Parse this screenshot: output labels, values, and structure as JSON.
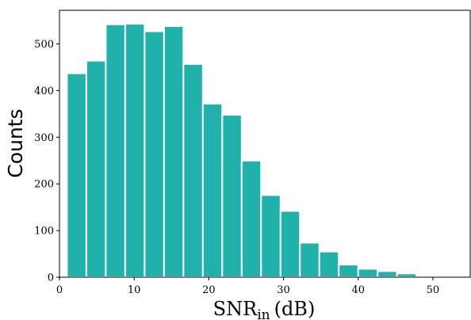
{
  "chart_data": {
    "type": "bar",
    "title": "",
    "xlabel": "SNR",
    "xlabel_subscript": "in",
    "xlabel_unit": "(dB)",
    "ylabel": "Counts",
    "xlim": [
      0,
      55
    ],
    "ylim": [
      0,
      572
    ],
    "x_ticks": [
      0,
      10,
      20,
      30,
      40,
      50
    ],
    "y_ticks": [
      0,
      100,
      200,
      300,
      400,
      500
    ],
    "bar_color": "#20b2aa",
    "bar_edge_color": "#ffffff",
    "grid": false,
    "bins": [
      {
        "x0": 1.0,
        "x1": 3.6,
        "count": 437
      },
      {
        "x0": 3.6,
        "x1": 6.2,
        "count": 464
      },
      {
        "x0": 6.2,
        "x1": 8.8,
        "count": 542
      },
      {
        "x0": 8.8,
        "x1": 11.4,
        "count": 543
      },
      {
        "x0": 11.4,
        "x1": 14.0,
        "count": 527
      },
      {
        "x0": 14.0,
        "x1": 16.6,
        "count": 538
      },
      {
        "x0": 16.6,
        "x1": 19.2,
        "count": 457
      },
      {
        "x0": 19.2,
        "x1": 21.8,
        "count": 372
      },
      {
        "x0": 21.8,
        "x1": 24.4,
        "count": 348
      },
      {
        "x0": 24.4,
        "x1": 27.0,
        "count": 250
      },
      {
        "x0": 27.0,
        "x1": 29.6,
        "count": 176
      },
      {
        "x0": 29.6,
        "x1": 32.2,
        "count": 142
      },
      {
        "x0": 32.2,
        "x1": 34.8,
        "count": 74
      },
      {
        "x0": 34.8,
        "x1": 37.4,
        "count": 55
      },
      {
        "x0": 37.4,
        "x1": 40.0,
        "count": 27
      },
      {
        "x0": 40.0,
        "x1": 42.6,
        "count": 18
      },
      {
        "x0": 42.6,
        "x1": 45.2,
        "count": 13
      },
      {
        "x0": 45.2,
        "x1": 47.8,
        "count": 8
      },
      {
        "x0": 47.8,
        "x1": 50.4,
        "count": 0
      },
      {
        "x0": 50.4,
        "x1": 53.0,
        "count": 2
      }
    ]
  }
}
